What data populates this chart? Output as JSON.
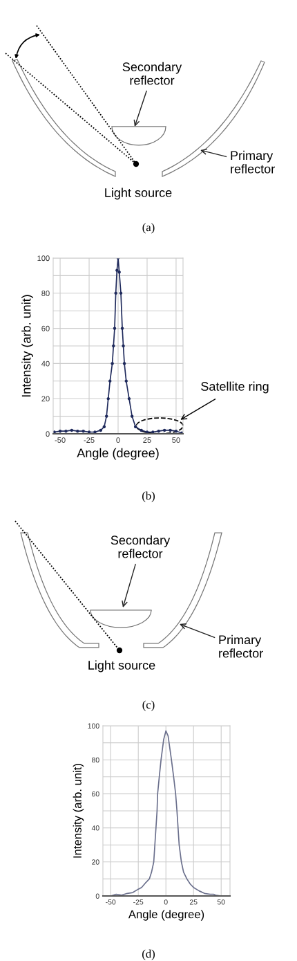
{
  "chart_data": [
    {
      "type": "other",
      "annotations": [
        "Secondary\nreflector",
        "Primary\nreflector",
        "Light source",
        "(a)"
      ]
    },
    {
      "type": "line",
      "xlabel": "Angle (degree)",
      "ylabel": "Intensity (arb. unit)",
      "marker": "circle",
      "grid": true,
      "xlim": [
        -56,
        56
      ],
      "ylim": [
        0,
        100
      ],
      "xticks": [
        -50,
        -25,
        0,
        25,
        50
      ],
      "yticks": [
        0,
        {
          "value": 10,
          "label": null
        },
        20,
        {
          "value": 30,
          "label": null
        },
        40,
        {
          "value": 50,
          "label": null
        },
        60,
        {
          "value": 70,
          "label": null
        },
        80,
        {
          "value": 90,
          "label": null
        },
        100
      ],
      "x": [
        -55,
        -50,
        -45,
        -40,
        -35,
        -30,
        -25,
        -20,
        -15,
        -12,
        -10,
        -8.5,
        -7,
        -5,
        -4,
        -3,
        -2,
        -1,
        0,
        1,
        2.4,
        3.6,
        4.5,
        5.4,
        7,
        9.5,
        12,
        15,
        20,
        25,
        30,
        35,
        40,
        45,
        50,
        55
      ],
      "series": [
        {
          "color": "#1f2a5c",
          "values": [
            1,
            1.5,
            1.5,
            2,
            1.5,
            1.5,
            1,
            1,
            2,
            4,
            10,
            20,
            30,
            40,
            50,
            60,
            80,
            93,
            100,
            92,
            80,
            60,
            50,
            40,
            30,
            20,
            10,
            4,
            2,
            1,
            1,
            1.5,
            2,
            2,
            1.5,
            0.5
          ]
        }
      ],
      "annotations": [
        "Satellite ring",
        "(b)"
      ]
    },
    {
      "type": "other",
      "annotations": [
        "Secondary\nreflector",
        "Primary\nreflector",
        "Light source",
        "(c)"
      ]
    },
    {
      "type": "line",
      "xlabel": "Angle (degree)",
      "ylabel": "Intensity (arb. unit)",
      "grid": true,
      "xlim": [
        -57,
        58
      ],
      "ylim": [
        0,
        100
      ],
      "xticks": [
        -50,
        -25,
        0,
        25,
        50
      ],
      "yticks": [
        0,
        {
          "value": 10,
          "label": null
        },
        20,
        {
          "value": 30,
          "label": null
        },
        40,
        {
          "value": 50,
          "label": null
        },
        60,
        {
          "value": 70,
          "label": null
        },
        80,
        {
          "value": 90,
          "label": null
        },
        100
      ],
      "x": [
        -55,
        -50,
        -45,
        -40,
        -35,
        -30,
        -25,
        -22,
        -18,
        -15,
        -13,
        -11,
        -10,
        -8,
        -7.5,
        -6,
        -4.4,
        -2,
        0,
        2,
        5,
        7,
        8.8,
        10,
        11,
        12,
        14,
        16,
        19,
        22,
        25,
        30,
        35,
        40,
        43,
        45,
        50,
        55
      ],
      "series": [
        {
          "color": "#6a6f8c",
          "values": [
            0,
            0,
            1,
            0.5,
            1.5,
            2,
            4,
            5,
            8,
            10,
            14,
            20,
            30,
            50,
            60,
            70,
            80,
            92,
            97,
            94,
            80,
            70,
            60,
            50,
            40,
            30,
            20,
            14,
            10,
            7,
            5,
            3,
            1.5,
            1,
            1,
            0.5,
            0,
            0
          ]
        }
      ],
      "annotations": [
        "(d)"
      ]
    }
  ]
}
